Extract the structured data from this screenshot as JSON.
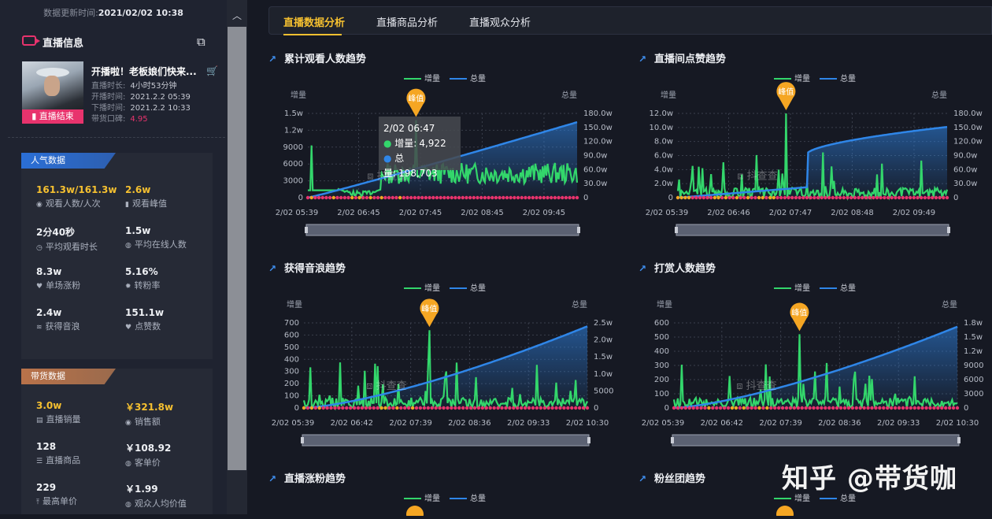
{
  "sidebar": {
    "update_label": "数据更新时间:",
    "update_time": "2021/02/02 10:38",
    "live_title": "直播信息",
    "live_name": "开播啦！老板娘们快来...",
    "end_badge": "直播结束",
    "meta": [
      {
        "label": "直播时长:",
        "value": "4小时53分钟"
      },
      {
        "label": "开播时间:",
        "value": "2021.2.2 05:39"
      },
      {
        "label": "下播时间:",
        "value": "2021.2.2 10:33"
      },
      {
        "label": "带货口碑:",
        "value": "4.95"
      }
    ],
    "popularity": {
      "tag": "人气数据",
      "stats": [
        {
          "value": "161.3w/161.3w",
          "label": "观看人数/人次",
          "icon": "eye-icon"
        },
        {
          "value": "2.6w",
          "label": "观看峰值",
          "icon": "bar-icon"
        },
        {
          "value": "2分40秒",
          "label": "平均观看时长",
          "icon": "clock-icon"
        },
        {
          "value": "1.5w",
          "label": "平均在线人数",
          "icon": "user-icon"
        },
        {
          "value": "8.3w",
          "label": "单场涨粉",
          "icon": "heart-icon"
        },
        {
          "value": "5.16%",
          "label": "转粉率",
          "icon": "gear-icon"
        },
        {
          "value": "2.4w",
          "label": "获得音浪",
          "icon": "wave-icon"
        },
        {
          "value": "151.1w",
          "label": "点赞数",
          "icon": "like-icon"
        }
      ]
    },
    "sales": {
      "tag": "带货数据",
      "stats": [
        {
          "value": "3.0w",
          "label": "直播销量",
          "icon": "box-icon"
        },
        {
          "value": "￥321.8w",
          "label": "销售额",
          "icon": "coin-icon"
        },
        {
          "value": "128",
          "label": "直播商品",
          "icon": "list-icon"
        },
        {
          "value": "￥108.92",
          "label": "客单价",
          "icon": "user-icon"
        },
        {
          "value": "229",
          "label": "最高单价",
          "icon": "arrow-up-icon"
        },
        {
          "value": "￥1.99",
          "label": "观众人均价值",
          "icon": "user-icon"
        }
      ]
    }
  },
  "tabs": [
    "直播数据分析",
    "直播商品分析",
    "直播观众分析"
  ],
  "legend": {
    "inc": "增量",
    "total": "总量"
  },
  "axis_left_name": "增量",
  "axis_right_name": "总量",
  "peak_label": "峰值",
  "watermark_text": "抖查查",
  "corner_watermark": "知乎 @带货咖",
  "colors": {
    "inc": "#33d66b",
    "total": "#2f86e8",
    "peak": "#f5a623",
    "dots": "#e8336d"
  },
  "tooltip": {
    "time": "2/02 06:47",
    "inc_label": "增量:",
    "inc_value": "4,922",
    "total_label": "总量:",
    "total_value": "198,703"
  },
  "chart_data": [
    {
      "type": "line",
      "title": "累计观看人数趋势",
      "x_ticks": [
        "2/02 05:39",
        "2/02 06:45",
        "2/02 07:45",
        "2/02 08:45",
        "2/02 09:45"
      ],
      "y_left_ticks": [
        "0",
        "3000",
        "6000",
        "9000",
        "1.2w",
        "1.5w"
      ],
      "y_right_ticks": [
        "0",
        "30.0w",
        "60.0w",
        "90.0w",
        "120.0w",
        "150.0w",
        "180.0w"
      ],
      "ylim_left": [
        0,
        15000
      ],
      "ylim_right": [
        0,
        1800000
      ],
      "series": [
        {
          "name": "增量",
          "peak": 13800
        },
        {
          "name": "总量",
          "end": 1613000
        }
      ]
    },
    {
      "type": "line",
      "title": "直播间点赞趋势",
      "x_ticks": [
        "2/02 05:39",
        "2/02 06:46",
        "2/02 07:47",
        "2/02 08:48",
        "2/02 09:49"
      ],
      "y_left_ticks": [
        "0",
        "2.0w",
        "4.0w",
        "6.0w",
        "8.0w",
        "10.0w",
        "12.0w"
      ],
      "y_right_ticks": [
        "0",
        "30.0w",
        "60.0w",
        "90.0w",
        "120.0w",
        "150.0w",
        "180.0w"
      ],
      "ylim_left": [
        0,
        120000
      ],
      "ylim_right": [
        0,
        1800000
      ],
      "series": [
        {
          "name": "增量",
          "peak": 120000
        },
        {
          "name": "总量",
          "end": 1511000
        }
      ]
    },
    {
      "type": "line",
      "title": "获得音浪趋势",
      "x_ticks": [
        "2/02 05:39",
        "2/02 06:42",
        "2/02 07:39",
        "2/02 08:36",
        "2/02 09:33",
        "2/02 10:30"
      ],
      "y_left_ticks": [
        "0",
        "100",
        "200",
        "300",
        "400",
        "500",
        "600",
        "700"
      ],
      "y_right_ticks": [
        "0",
        "5000",
        "1.0w",
        "1.5w",
        "2.0w",
        "2.5w"
      ],
      "ylim_left": [
        0,
        700
      ],
      "ylim_right": [
        0,
        25000
      ],
      "series": [
        {
          "name": "增量",
          "peak": 640
        },
        {
          "name": "总量",
          "end": 24000
        }
      ]
    },
    {
      "type": "line",
      "title": "打赏人数趋势",
      "x_ticks": [
        "2/02 05:39",
        "2/02 06:42",
        "2/02 07:39",
        "2/02 08:36",
        "2/02 09:33",
        "2/02 10:30"
      ],
      "y_left_ticks": [
        "0",
        "100",
        "200",
        "300",
        "400",
        "500",
        "600"
      ],
      "y_right_ticks": [
        "0",
        "3000",
        "6000",
        "9000",
        "1.2w",
        "1.5w",
        "1.8w"
      ],
      "ylim_left": [
        0,
        600
      ],
      "ylim_right": [
        0,
        18000
      ],
      "series": [
        {
          "name": "增量",
          "peak": 520
        },
        {
          "name": "总量",
          "end": 17200
        }
      ]
    },
    {
      "type": "line",
      "title": "直播涨粉趋势",
      "series": [
        {
          "name": "增量"
        },
        {
          "name": "总量"
        }
      ]
    },
    {
      "type": "line",
      "title": "粉丝团趋势",
      "series": [
        {
          "name": "增量"
        },
        {
          "name": "总量"
        }
      ]
    }
  ]
}
